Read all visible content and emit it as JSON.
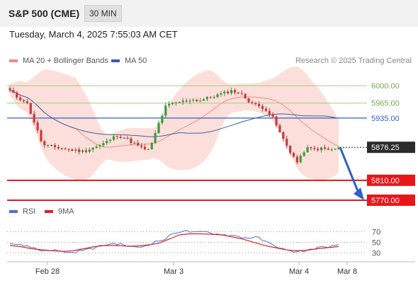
{
  "header": {
    "symbol": "S&P 500 (CME)",
    "timeframe": "30 MIN"
  },
  "timestamp": "Tuesday, March 4, 2025 7:55:03 AM CET",
  "legend": {
    "ma_bb": {
      "label": "MA 20 + Bollinger Bands",
      "color": "#f08a80"
    },
    "ma50": {
      "label": "MA 50",
      "color": "#3a5ea8"
    },
    "rsi": {
      "label": "RSI",
      "color": "#4a6fd8"
    },
    "ma9": {
      "label": "9MA",
      "color": "#e02020"
    }
  },
  "copyright": "Research © 2025 Trading Central",
  "chart_data": {
    "type": "candlestick",
    "y_range": [
      5760,
      6030
    ],
    "x_labels": [
      "Feb 28",
      "Mar 3",
      "Mar 4",
      "Mar 8"
    ],
    "current_price": "5876.25",
    "levels": [
      {
        "label": "6000.00",
        "value": 6000,
        "color": "#9fcf7a",
        "kind": "resistance-2"
      },
      {
        "label": "5965.00",
        "value": 5965,
        "color": "#9fcf7a",
        "kind": "resistance-1"
      },
      {
        "label": "5935.00",
        "value": 5935,
        "color": "#2f5fc9",
        "kind": "pivot"
      },
      {
        "label": "5810.00",
        "value": 5810,
        "color": "#e8161b",
        "kind": "support-1"
      },
      {
        "label": "5770.00",
        "value": 5770,
        "color": "#e8161b",
        "kind": "support-2"
      }
    ],
    "forecast": {
      "from": 5876.25,
      "to": 5770,
      "color": "#2f5fc9"
    },
    "price_waypoints": [
      5990,
      5975,
      5968,
      5925,
      5880,
      5878,
      5875,
      5872,
      5870,
      5868,
      5875,
      5880,
      5890,
      5900,
      5895,
      5885,
      5875,
      5870,
      5920,
      5960,
      5965,
      5968,
      5972,
      5970,
      5975,
      5980,
      5985,
      5990,
      5985,
      5970,
      5960,
      5955,
      5935,
      5900,
      5870,
      5845,
      5875,
      5872,
      5874,
      5870,
      5876
    ],
    "rsi": {
      "y_range": [
        20,
        80
      ],
      "ticks": [
        "70",
        "50",
        "30"
      ],
      "rsi_waypoints": [
        48,
        45,
        42,
        34,
        36,
        33,
        30,
        35,
        38,
        44,
        48,
        46,
        40,
        42,
        50,
        55,
        68,
        72,
        68,
        70,
        66,
        64,
        62,
        58,
        60,
        50,
        42,
        34,
        32,
        35,
        40,
        42,
        44
      ],
      "ma9_waypoints": [
        44,
        42,
        38,
        36,
        34,
        33,
        34,
        38,
        42,
        44,
        44,
        43,
        43,
        45,
        48,
        56,
        64,
        66,
        66,
        65,
        64,
        60,
        56,
        50,
        44,
        40,
        36,
        34,
        35,
        38,
        40,
        42
      ]
    }
  }
}
